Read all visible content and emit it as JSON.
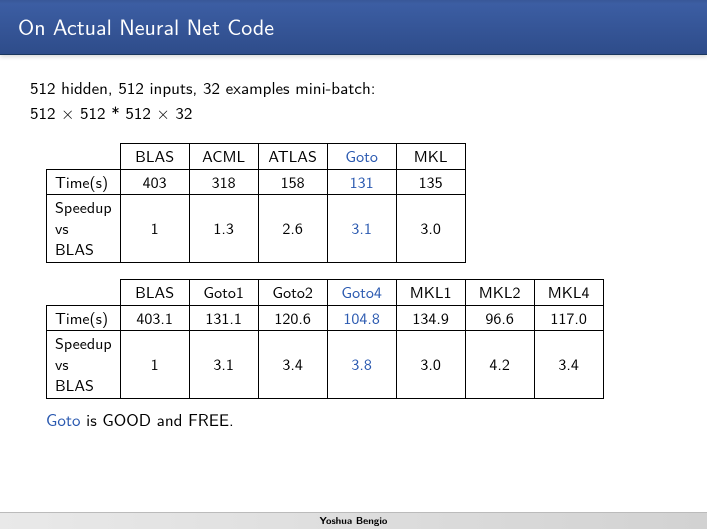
{
  "title": "On Actual Neural Net Code",
  "subhead": "512 hidden, 512 inputs, 32 examples mini-batch:",
  "expr": "512 × 512 * 512 × 32",
  "highlight_color": "#2a59b0",
  "table1": {
    "highlight_index": 3,
    "headers": [
      "BLAS",
      "ACML",
      "ATLAS",
      "Goto",
      "MKL"
    ],
    "rows": [
      {
        "label": "Time(s)",
        "values": [
          "403",
          "318",
          "158",
          "131",
          "135"
        ]
      },
      {
        "label": "Speedup\nvs\nBLAS",
        "values": [
          "1",
          "1.3",
          "2.6",
          "3.1",
          "3.0"
        ]
      }
    ]
  },
  "table2": {
    "highlight_index": 3,
    "headers": [
      "BLAS",
      "Goto1",
      "Goto2",
      "Goto4",
      "MKL1",
      "MKL2",
      "MKL4"
    ],
    "rows": [
      {
        "label": "Time(s)",
        "values": [
          "403.1",
          "131.1",
          "120.6",
          "104.8",
          "134.9",
          "96.6",
          "117.0"
        ]
      },
      {
        "label": "Speedup\nvs\nBLAS",
        "values": [
          "1",
          "3.1",
          "3.4",
          "3.8",
          "3.0",
          "4.2",
          "3.4"
        ]
      }
    ]
  },
  "footline_prefix": "Goto",
  "footline_rest": " is GOOD and FREE.",
  "footer": "Yoshua Bengio"
}
